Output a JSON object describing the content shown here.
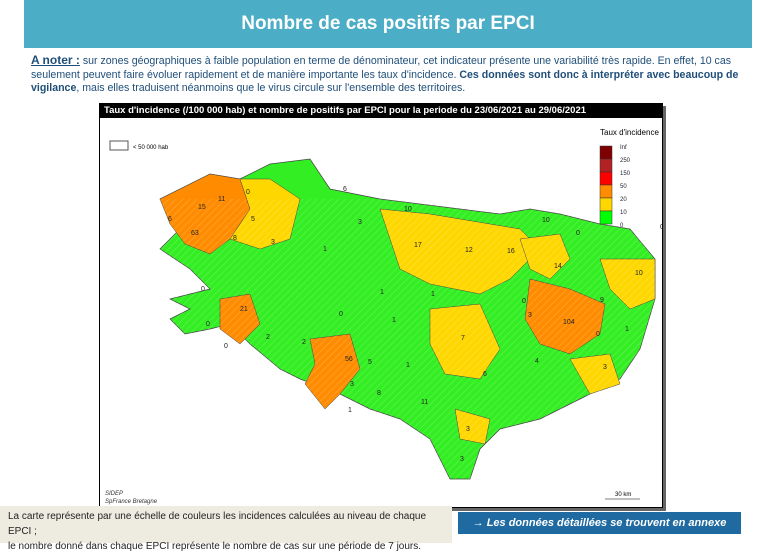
{
  "header": {
    "title": "Nombre de cas positifs par EPCI"
  },
  "note": {
    "label": "A noter :",
    "text1": " sur zones géographiques à faible population en terme de dénominateur, cet indicateur présente une variabilité très rapide. En effet, 10 cas seulement peuvent faire évoluer rapidement et de manière importante les taux d'incidence. ",
    "bold": "Ces données sont donc à interpréter avec beaucoup de vigilance",
    "text2": ", mais elles traduisent néanmoins que le virus circule sur l'ensemble des territoires."
  },
  "map": {
    "title": "Taux d'incidence (/100 000 hab) et nombre de positifs par EPCI pour la periode du 23/06/2021 au 29/06/2021",
    "hatch_legend": "< 50 000 hab",
    "legend": {
      "title": "Taux d'incidence",
      "classes": [
        {
          "label": "Inf",
          "color": "#7f0000"
        },
        {
          "label": "250",
          "color": "#b22222"
        },
        {
          "label": "150",
          "color": "#ff0000"
        },
        {
          "label": "50",
          "color": "#ff8c00"
        },
        {
          "label": "20",
          "color": "#ffd700"
        },
        {
          "label": "10",
          "color": "#00ff00"
        },
        {
          "label": "0",
          "color": ""
        }
      ]
    },
    "epci_counts": [
      "11",
      "15",
      "6",
      "63",
      "0",
      "5",
      "8",
      "3",
      "6",
      "3",
      "1",
      "10",
      "17",
      "12",
      "16",
      "10",
      "0",
      "14",
      "10",
      "9",
      "104",
      "3",
      "0",
      "1",
      "21",
      "0",
      "2",
      "2",
      "0",
      "1",
      "1",
      "7",
      "56",
      "3",
      "5",
      "8",
      "1",
      "6",
      "4",
      "0",
      "3",
      "11",
      "3",
      "3",
      "1",
      "0",
      "0",
      "1",
      "0"
    ],
    "source": "SIDEP",
    "source2": "SpFrance Bretagne",
    "scale": "30 km"
  },
  "caption": {
    "line1": "La carte représente par une échelle de couleurs les incidences calculées au niveau de chaque EPCI ;",
    "line2": "le nombre donné dans chaque EPCI représente le nombre de cas sur une période de 7 jours."
  },
  "annex_link": "→ Les données détaillées se trouvent en annexe"
}
